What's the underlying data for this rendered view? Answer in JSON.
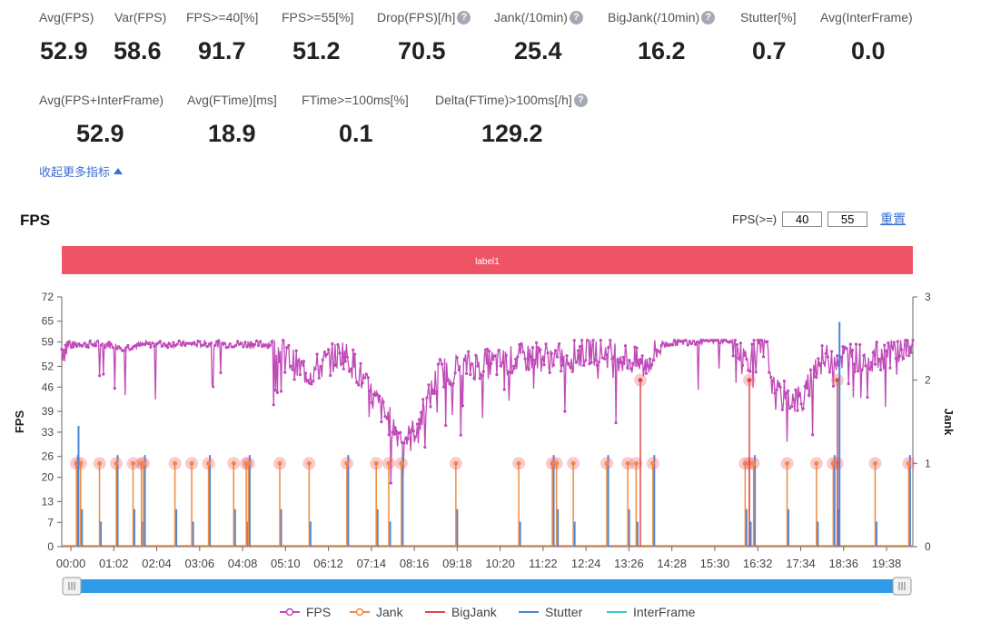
{
  "metrics_row1": [
    {
      "label": "Avg(FPS)",
      "value": "52.9",
      "help": false
    },
    {
      "label": "Var(FPS)",
      "value": "58.6",
      "help": false
    },
    {
      "label": "FPS>=40[%]",
      "value": "91.7",
      "help": false
    },
    {
      "label": "FPS>=55[%]",
      "value": "51.2",
      "help": false
    },
    {
      "label": "Drop(FPS)[/h]",
      "value": "70.5",
      "help": true
    },
    {
      "label": "Jank(/10min)",
      "value": "25.4",
      "help": true
    },
    {
      "label": "BigJank(/10min)",
      "value": "16.2",
      "help": true
    },
    {
      "label": "Stutter[%]",
      "value": "0.7",
      "help": false
    },
    {
      "label": "Avg(InterFrame)",
      "value": "0.0",
      "help": false
    }
  ],
  "metrics_row2": [
    {
      "label": "Avg(FPS+InterFrame)",
      "value": "52.9",
      "help": false
    },
    {
      "label": "Avg(FTime)[ms]",
      "value": "18.9",
      "help": false
    },
    {
      "label": "FTime>=100ms[%]",
      "value": "0.1",
      "help": false
    },
    {
      "label": "Delta(FTime)>100ms[/h]",
      "value": "129.2",
      "help": true
    }
  ],
  "toggle_label": "收起更多指标",
  "help_glyph": "?",
  "chart_title": "FPS",
  "threshold": {
    "label": "FPS(>=)",
    "value1": "40",
    "value2": "55",
    "reset_label": "重置"
  },
  "chart_data": {
    "type": "line",
    "band_label": "label1",
    "band_color": "#ef5464",
    "ylabel_left": "FPS",
    "ylabel_right": "Jank",
    "y_left_ticks": [
      "0",
      "7",
      "13",
      "20",
      "26",
      "33",
      "39",
      "46",
      "52",
      "59",
      "65",
      "72"
    ],
    "y_left_range": [
      0,
      72
    ],
    "y_right_ticks": [
      "0",
      "1",
      "2",
      "3"
    ],
    "y_right_range": [
      0,
      3
    ],
    "x_ticks": [
      "00:00",
      "01:02",
      "02:04",
      "03:06",
      "04:08",
      "05:10",
      "06:12",
      "07:14",
      "08:16",
      "09:18",
      "10:20",
      "11:22",
      "12:24",
      "13:26",
      "14:28",
      "15:30",
      "16:32",
      "17:34",
      "18:36",
      "19:38"
    ],
    "x_range_minutes": [
      0,
      20.3
    ],
    "legend": [
      "FPS",
      "Jank",
      "BigJank",
      "Stutter",
      "InterFrame"
    ],
    "series_colors": {
      "FPS": "#c04ab8",
      "Jank": "#f08a3c",
      "BigJank": "#e04848",
      "Stutter": "#4b86d9",
      "InterFrame": "#3ec8c8"
    },
    "fps_profile": [
      [
        0.0,
        57
      ],
      [
        0.3,
        58
      ],
      [
        1.0,
        58
      ],
      [
        1.5,
        57
      ],
      [
        2.0,
        58
      ],
      [
        4.0,
        58
      ],
      [
        5.0,
        58
      ],
      [
        5.3,
        56
      ],
      [
        5.6,
        52
      ],
      [
        5.9,
        50
      ],
      [
        6.3,
        53
      ],
      [
        6.7,
        56
      ],
      [
        7.0,
        52
      ],
      [
        7.3,
        45
      ],
      [
        7.6,
        40
      ],
      [
        8.0,
        33
      ],
      [
        8.3,
        31
      ],
      [
        8.6,
        38
      ],
      [
        9.0,
        50
      ],
      [
        9.6,
        52
      ],
      [
        10.5,
        53
      ],
      [
        11.3,
        55
      ],
      [
        12.0,
        54
      ],
      [
        12.6,
        57
      ],
      [
        13.3,
        55
      ],
      [
        13.9,
        52
      ],
      [
        14.3,
        58
      ],
      [
        15.2,
        59
      ],
      [
        16.0,
        59
      ],
      [
        16.3,
        54
      ],
      [
        16.8,
        57
      ],
      [
        17.0,
        44
      ],
      [
        17.7,
        42
      ],
      [
        18.0,
        53
      ],
      [
        18.5,
        55
      ],
      [
        19.2,
        54
      ],
      [
        19.8,
        56
      ],
      [
        20.3,
        58
      ]
    ],
    "jank_times": [
      0.35,
      0.45,
      0.9,
      1.3,
      1.7,
      1.9,
      1.95,
      2.7,
      3.1,
      3.5,
      4.1,
      4.4,
      4.45,
      5.2,
      5.9,
      6.8,
      7.5,
      7.8,
      8.1,
      9.4,
      10.9,
      11.7,
      11.8,
      12.2,
      13.0,
      13.5,
      13.7,
      14.1,
      16.3,
      16.4,
      16.5,
      17.3,
      18.0,
      18.4,
      18.5,
      19.4,
      20.2
    ],
    "jank_value": 1,
    "bigjank_times": [
      13.8,
      16.4,
      18.5
    ],
    "bigjank_value": 2
  }
}
